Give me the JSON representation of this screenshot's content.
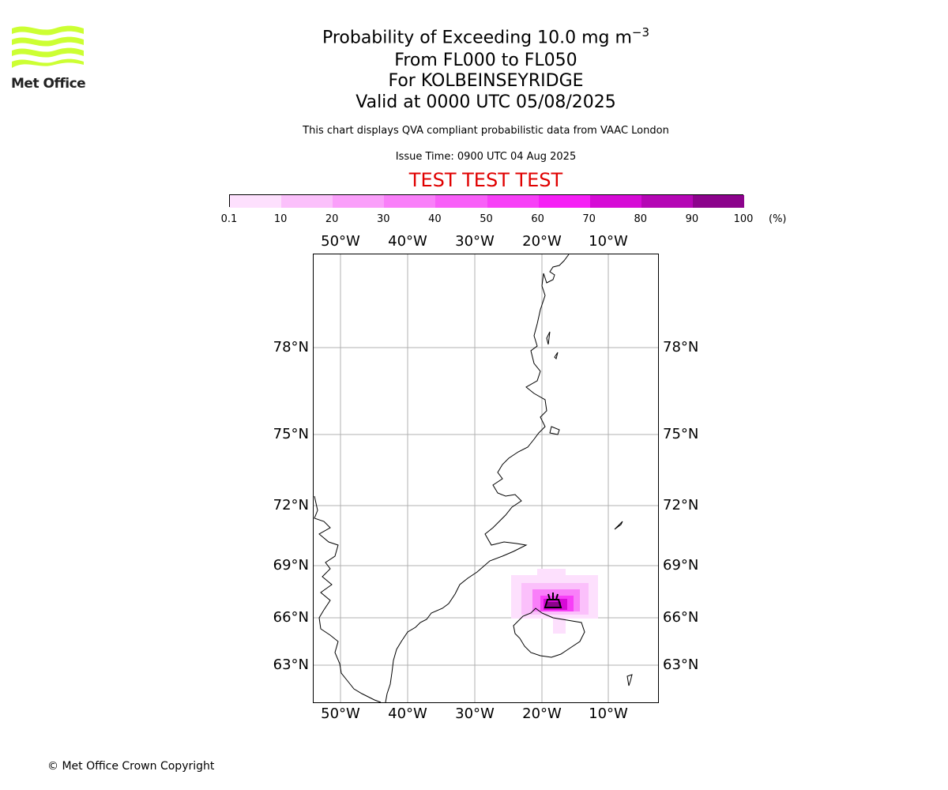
{
  "logo": {
    "text": "Met Office",
    "color": "#ccff33"
  },
  "title": {
    "line1": "Probability of Exceeding 10.0 mg m",
    "line1_sup": "−3",
    "line2": "From FL000 to FL050",
    "line3": "For KOLBEINSEYRIDGE",
    "line4": "Valid at 0000 UTC 05/08/2025"
  },
  "subtitle": "This chart displays QVA compliant probabilistic data from VAAC London",
  "issue_time": "Issue Time: 0900 UTC 04 Aug 2025",
  "test_banner": "TEST TEST TEST",
  "test_color": "#e00000",
  "colorbar": {
    "ticks": [
      "0.1",
      "10",
      "20",
      "30",
      "40",
      "50",
      "60",
      "70",
      "80",
      "90",
      "100"
    ],
    "unit": "(%)",
    "colors": [
      "#fde0fd",
      "#fbc0fb",
      "#fa9ffa",
      "#f97ff9",
      "#f85ff8",
      "#f73ff7",
      "#f51ff5",
      "#d60bd6",
      "#b506b5",
      "#8c038c",
      "#640364"
    ]
  },
  "map": {
    "lon_labels": [
      "50°W",
      "40°W",
      "30°W",
      "20°W",
      "10°W"
    ],
    "lat_labels": [
      "78°N",
      "75°N",
      "72°N",
      "69°N",
      "66°N",
      "63°N"
    ],
    "volcano_symbol": "volcano-marker"
  },
  "copyright": "© Met Office Crown Copyright"
}
